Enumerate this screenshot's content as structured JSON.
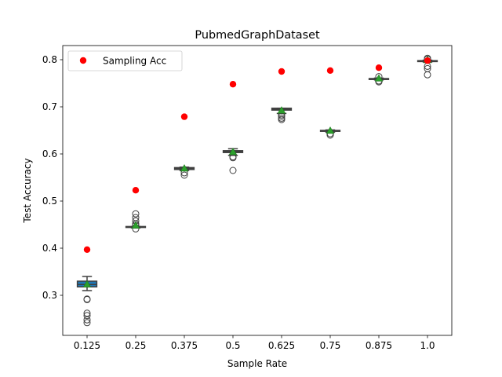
{
  "chart_data": {
    "type": "box",
    "title": "PubmedGraphDataset",
    "xlabel": "Sample Rate",
    "ylabel": "Test Accuracy",
    "categories": [
      "0.125",
      "0.25",
      "0.375",
      "0.5",
      "0.625",
      "0.75",
      "0.875",
      "1.0"
    ],
    "ylim": [
      0.215,
      0.83
    ],
    "yticks": [
      0.3,
      0.4,
      0.5,
      0.6,
      0.7,
      0.8
    ],
    "ytick_labels": [
      "0.3",
      "0.4",
      "0.5",
      "0.6",
      "0.7",
      "0.8"
    ],
    "grid": false,
    "legend": {
      "position": "top-left",
      "entries": [
        "Sampling Acc"
      ]
    },
    "colors": {
      "box": "#1f77b4",
      "mean": "#2ca02c",
      "sampling": "#ff0000",
      "edge": "#3f3f3f"
    },
    "boxes": [
      {
        "q1": 0.318,
        "median": 0.323,
        "q3": 0.33,
        "whislo": 0.31,
        "whishi": 0.34,
        "mean": 0.322,
        "fliers": [
          0.292,
          0.291,
          0.262,
          0.257,
          0.248,
          0.242
        ]
      },
      {
        "q1": 0.444,
        "median": 0.445,
        "q3": 0.446,
        "whislo": 0.443,
        "whishi": 0.446,
        "mean": 0.447,
        "fliers": [
          0.473,
          0.465,
          0.458,
          0.452,
          0.449,
          0.441
        ]
      },
      {
        "q1": 0.567,
        "median": 0.569,
        "q3": 0.571,
        "whislo": 0.565,
        "whishi": 0.572,
        "mean": 0.568,
        "fliers": [
          0.56,
          0.555
        ]
      },
      {
        "q1": 0.603,
        "median": 0.605,
        "q3": 0.607,
        "whislo": 0.597,
        "whishi": 0.611,
        "mean": 0.603,
        "fliers": [
          0.594,
          0.592,
          0.565
        ]
      },
      {
        "q1": 0.693,
        "median": 0.695,
        "q3": 0.697,
        "whislo": 0.686,
        "whishi": 0.697,
        "mean": 0.691,
        "fliers": [
          0.683,
          0.68,
          0.676,
          0.673
        ]
      },
      {
        "q1": 0.648,
        "median": 0.649,
        "q3": 0.65,
        "whislo": 0.646,
        "whishi": 0.651,
        "mean": 0.648,
        "fliers": [
          0.643,
          0.64
        ]
      },
      {
        "q1": 0.758,
        "median": 0.759,
        "q3": 0.76,
        "whislo": 0.757,
        "whishi": 0.761,
        "mean": 0.759,
        "fliers": [
          0.764,
          0.755,
          0.753
        ]
      },
      {
        "q1": 0.796,
        "median": 0.797,
        "q3": 0.798,
        "whislo": 0.795,
        "whishi": 0.799,
        "mean": 0.798,
        "fliers": [
          0.803,
          0.801,
          0.786,
          0.781,
          0.768
        ]
      }
    ],
    "sampling_acc": [
      0.397,
      0.523,
      0.679,
      0.748,
      0.775,
      0.777,
      0.783,
      0.798
    ]
  }
}
